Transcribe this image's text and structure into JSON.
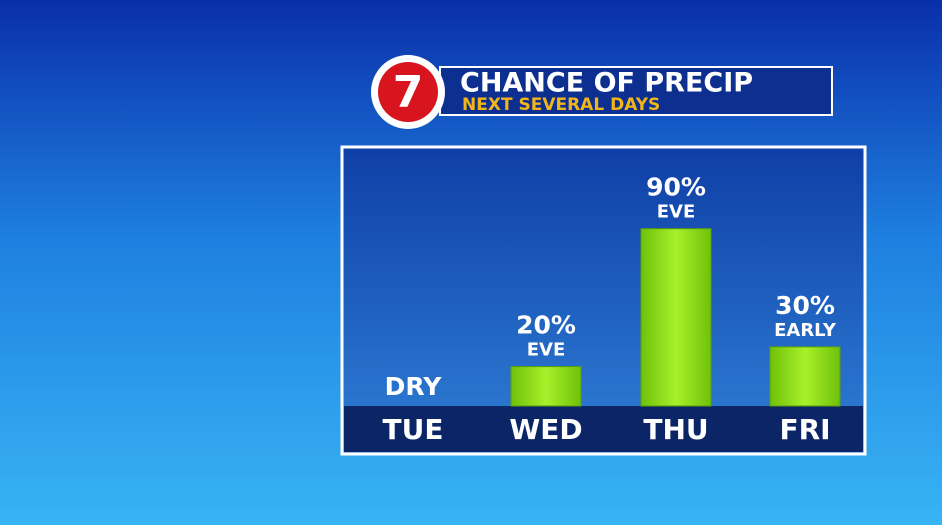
{
  "chart_data": {
    "type": "bar",
    "logo": "7",
    "title": "CHANCE OF PRECIP",
    "subtitle": "NEXT SEVERAL DAYS",
    "categories": [
      "TUE",
      "WED",
      "THU",
      "FRI"
    ],
    "values": [
      0,
      20,
      90,
      30
    ],
    "value_labels": [
      "DRY",
      "20%",
      "90%",
      "30%"
    ],
    "timing": [
      null,
      "EVE",
      "EVE",
      "EARLY"
    ],
    "color": "#8fe012",
    "ylim": [
      0,
      100
    ]
  }
}
